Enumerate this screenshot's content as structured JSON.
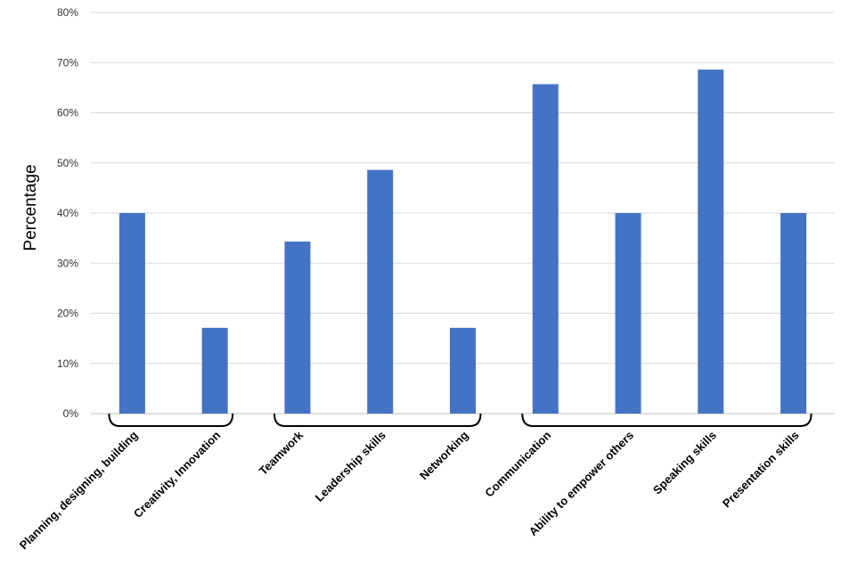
{
  "chart_data": {
    "type": "bar",
    "title": "",
    "xlabel": "",
    "ylabel": "Percentage",
    "ylim": [
      0,
      80
    ],
    "yticks": [
      "0%",
      "10%",
      "20%",
      "30%",
      "40%",
      "50%",
      "60%",
      "70%",
      "80%"
    ],
    "grid": true,
    "legend": "none",
    "bar_color": "#4472C4",
    "categories": [
      "Planning, designing, building",
      "Creativity, Innovation",
      "Teamwork",
      "Leadership skills",
      "Networking",
      "Communication",
      "Ability to empower others",
      "Speaking skills",
      "Presentation skills"
    ],
    "values": [
      40,
      17.1,
      34.3,
      48.6,
      17.1,
      65.7,
      40,
      68.6,
      40
    ],
    "groups": [
      {
        "members": [
          0,
          1
        ]
      },
      {
        "members": [
          2,
          3,
          4
        ]
      },
      {
        "members": [
          5,
          6,
          7,
          8
        ]
      }
    ]
  }
}
